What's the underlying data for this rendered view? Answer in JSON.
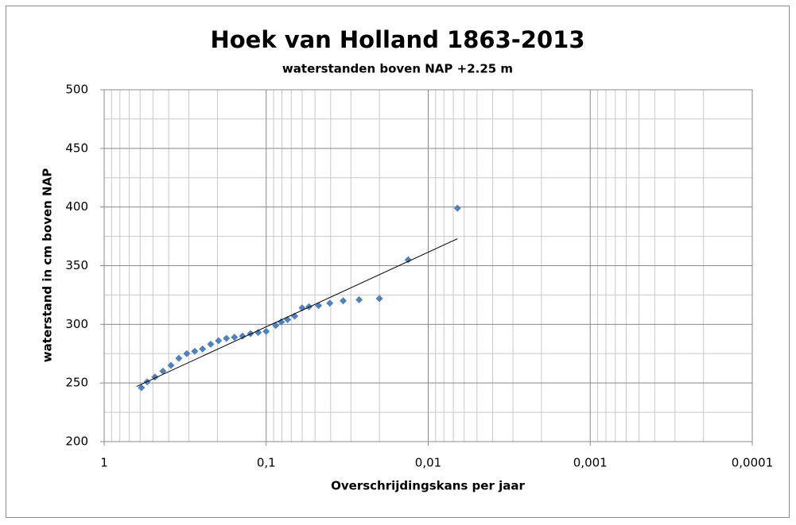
{
  "chart_data": {
    "type": "scatter",
    "title": "Hoek van Holland 1863-2013",
    "subtitle": "waterstanden boven NAP +2.25 m",
    "x_label": "Overschrijdingskans per jaar",
    "y_label": "waterstand in cm boven NAP",
    "x_scale": "log",
    "minor_grid": true,
    "grid": true,
    "xlim": [
      1,
      0.0001
    ],
    "xticks": [
      1,
      {
        "value": 0.1,
        "label": "0,1"
      },
      {
        "value": 0.01,
        "label": "0,01"
      },
      {
        "value": 0.001,
        "label": "0,001"
      },
      {
        "value": 0.0001,
        "label": "0,0001"
      }
    ],
    "ylim": [
      200,
      500
    ],
    "yticks": [
      200,
      250,
      300,
      350,
      400,
      450,
      500
    ],
    "series": [
      {
        "kind": "points",
        "color": "#4f81bd",
        "x": [
          0.589,
          0.543,
          0.486,
          0.434,
          0.387,
          0.346,
          0.309,
          0.276,
          0.247,
          0.22,
          0.197,
          0.176,
          0.157,
          0.14,
          0.125,
          0.112,
          0.1,
          0.0873,
          0.0807,
          0.0738,
          0.0667,
          0.06,
          0.0544,
          0.0475,
          0.0405,
          0.0335,
          0.0267,
          0.02,
          0.0133,
          0.0066
        ],
        "values": [
          246,
          251,
          255,
          260,
          265,
          271,
          275,
          277,
          279,
          283,
          286,
          288,
          289,
          290,
          292,
          293,
          294,
          299,
          302,
          304,
          307,
          314,
          315,
          316,
          318,
          320,
          321,
          322,
          355,
          399
        ]
      },
      {
        "kind": "line",
        "color": "#000000",
        "x": [
          0.63,
          0.0066
        ],
        "values": [
          247,
          373
        ]
      }
    ]
  }
}
